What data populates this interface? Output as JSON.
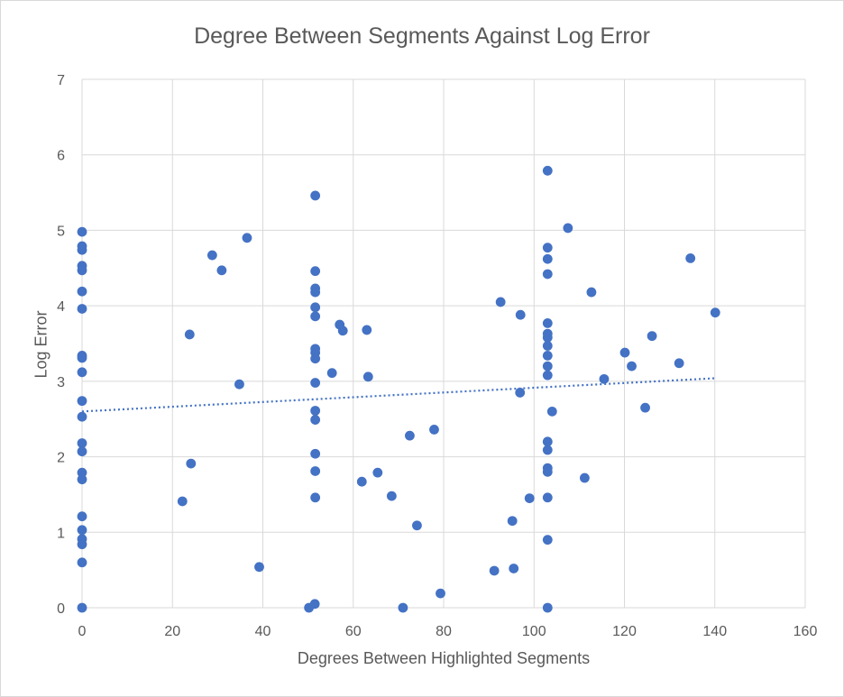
{
  "chart_data": {
    "type": "scatter",
    "title": "Degree Between Segments Against Log Error",
    "xlabel": "Degrees Between Highlighted Segments",
    "ylabel": "Log Error",
    "xlim": [
      0,
      160
    ],
    "ylim": [
      0,
      7
    ],
    "xticks": [
      0,
      20,
      40,
      60,
      80,
      100,
      120,
      140,
      160
    ],
    "yticks": [
      0,
      1,
      2,
      3,
      4,
      5,
      6,
      7
    ],
    "grid": true,
    "legend": "none",
    "marker_color": "#4472C4",
    "trendline": {
      "type": "linear",
      "style": "dotted",
      "x": [
        0,
        140
      ],
      "y": [
        2.6,
        3.04
      ]
    },
    "points": [
      {
        "x": 0,
        "y": 4.98
      },
      {
        "x": 0,
        "y": 4.79
      },
      {
        "x": 0,
        "y": 4.74
      },
      {
        "x": 0,
        "y": 4.53
      },
      {
        "x": 0,
        "y": 4.47
      },
      {
        "x": 0,
        "y": 4.19
      },
      {
        "x": 0,
        "y": 3.96
      },
      {
        "x": 0,
        "y": 3.34
      },
      {
        "x": 0,
        "y": 3.31
      },
      {
        "x": 0,
        "y": 3.12
      },
      {
        "x": 0,
        "y": 2.74
      },
      {
        "x": 0,
        "y": 2.53
      },
      {
        "x": 0,
        "y": 2.18
      },
      {
        "x": 0,
        "y": 2.07
      },
      {
        "x": 0,
        "y": 1.79
      },
      {
        "x": 0,
        "y": 1.7
      },
      {
        "x": 0,
        "y": 1.21
      },
      {
        "x": 0,
        "y": 1.03
      },
      {
        "x": 0,
        "y": 0.91
      },
      {
        "x": 0,
        "y": 0.84
      },
      {
        "x": 0,
        "y": 0.6
      },
      {
        "x": 0,
        "y": 0.0
      },
      {
        "x": 22.2,
        "y": 1.41
      },
      {
        "x": 23.8,
        "y": 3.62
      },
      {
        "x": 24.1,
        "y": 1.91
      },
      {
        "x": 28.8,
        "y": 4.67
      },
      {
        "x": 30.9,
        "y": 4.47
      },
      {
        "x": 34.8,
        "y": 2.96
      },
      {
        "x": 36.5,
        "y": 4.9
      },
      {
        "x": 39.2,
        "y": 0.54
      },
      {
        "x": 50.2,
        "y": 0.0
      },
      {
        "x": 51.5,
        "y": 0.05
      },
      {
        "x": 51.6,
        "y": 5.46
      },
      {
        "x": 51.6,
        "y": 4.46
      },
      {
        "x": 51.6,
        "y": 4.23
      },
      {
        "x": 51.6,
        "y": 4.18
      },
      {
        "x": 51.6,
        "y": 3.98
      },
      {
        "x": 51.6,
        "y": 3.86
      },
      {
        "x": 51.6,
        "y": 3.43
      },
      {
        "x": 51.6,
        "y": 3.38
      },
      {
        "x": 51.6,
        "y": 3.3
      },
      {
        "x": 51.6,
        "y": 2.98
      },
      {
        "x": 51.6,
        "y": 2.61
      },
      {
        "x": 51.6,
        "y": 2.49
      },
      {
        "x": 51.6,
        "y": 2.04
      },
      {
        "x": 51.6,
        "y": 1.81
      },
      {
        "x": 51.6,
        "y": 1.46
      },
      {
        "x": 55.3,
        "y": 3.11
      },
      {
        "x": 57.0,
        "y": 3.75
      },
      {
        "x": 57.7,
        "y": 3.67
      },
      {
        "x": 61.9,
        "y": 1.67
      },
      {
        "x": 63.0,
        "y": 3.68
      },
      {
        "x": 63.3,
        "y": 3.06
      },
      {
        "x": 65.4,
        "y": 1.79
      },
      {
        "x": 68.5,
        "y": 1.48
      },
      {
        "x": 71.0,
        "y": 0.0
      },
      {
        "x": 72.5,
        "y": 2.28
      },
      {
        "x": 74.1,
        "y": 1.09
      },
      {
        "x": 77.9,
        "y": 2.36
      },
      {
        "x": 79.3,
        "y": 0.19
      },
      {
        "x": 91.2,
        "y": 0.49
      },
      {
        "x": 92.6,
        "y": 4.05
      },
      {
        "x": 95.2,
        "y": 1.15
      },
      {
        "x": 95.5,
        "y": 0.52
      },
      {
        "x": 96.9,
        "y": 2.85
      },
      {
        "x": 97.0,
        "y": 3.88
      },
      {
        "x": 99.0,
        "y": 1.45
      },
      {
        "x": 103.0,
        "y": 5.79
      },
      {
        "x": 103.0,
        "y": 4.77
      },
      {
        "x": 103.0,
        "y": 4.62
      },
      {
        "x": 103.0,
        "y": 4.42
      },
      {
        "x": 103.0,
        "y": 3.77
      },
      {
        "x": 103.0,
        "y": 3.63
      },
      {
        "x": 103.0,
        "y": 3.58
      },
      {
        "x": 103.0,
        "y": 3.47
      },
      {
        "x": 103.0,
        "y": 3.34
      },
      {
        "x": 103.0,
        "y": 3.2
      },
      {
        "x": 103.0,
        "y": 3.08
      },
      {
        "x": 103.0,
        "y": 2.2
      },
      {
        "x": 103.0,
        "y": 2.09
      },
      {
        "x": 103.0,
        "y": 1.85
      },
      {
        "x": 103.0,
        "y": 1.8
      },
      {
        "x": 103.0,
        "y": 1.46
      },
      {
        "x": 103.0,
        "y": 0.9
      },
      {
        "x": 103.0,
        "y": 0.0
      },
      {
        "x": 104.0,
        "y": 2.6
      },
      {
        "x": 107.5,
        "y": 5.03
      },
      {
        "x": 111.2,
        "y": 1.72
      },
      {
        "x": 112.7,
        "y": 4.18
      },
      {
        "x": 115.5,
        "y": 3.03
      },
      {
        "x": 120.1,
        "y": 3.38
      },
      {
        "x": 121.6,
        "y": 3.2
      },
      {
        "x": 124.6,
        "y": 2.65
      },
      {
        "x": 126.1,
        "y": 3.6
      },
      {
        "x": 132.1,
        "y": 3.24
      },
      {
        "x": 134.6,
        "y": 4.63
      },
      {
        "x": 140.1,
        "y": 3.91
      }
    ]
  }
}
